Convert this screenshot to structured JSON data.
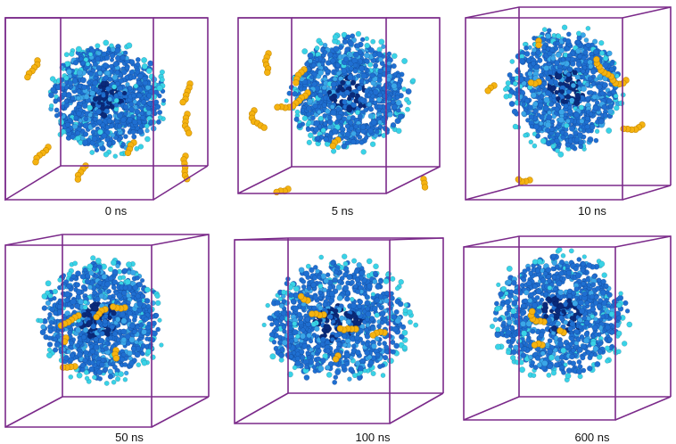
{
  "figure": {
    "panels": [
      {
        "id": "p0",
        "label": "0 ns"
      },
      {
        "id": "p1",
        "label": "5 ns"
      },
      {
        "id": "p2",
        "label": "10 ns"
      },
      {
        "id": "p3",
        "label": "50 ns"
      },
      {
        "id": "p4",
        "label": "100 ns"
      },
      {
        "id": "p5",
        "label": "600 ns"
      }
    ],
    "colors": {
      "box_edge": "#7b2a8a",
      "micelle_dark": "#0a2a7a",
      "micelle_mid": "#1f6fd1",
      "micelle_light": "#3aa6e8",
      "micelle_cyan": "#39d3e6",
      "solute": "#f5b311"
    }
  }
}
